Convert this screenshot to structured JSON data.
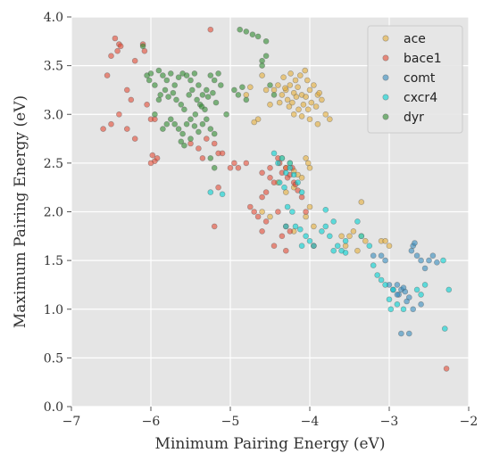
{
  "chart_data": {
    "type": "scatter",
    "title": "",
    "xlabel": "Minimum Pairing Energy (eV)",
    "ylabel": "Maximum Pairing Energy (eV)",
    "xlim": [
      -7,
      -2
    ],
    "ylim": [
      0,
      4
    ],
    "x_ticks": [
      -7,
      -6,
      -5,
      -4,
      -3,
      -2
    ],
    "x_tick_labels": [
      "−7",
      "−6",
      "−5",
      "−4",
      "−3",
      "−2"
    ],
    "y_ticks": [
      0.0,
      0.5,
      1.0,
      1.5,
      2.0,
      2.5,
      3.0,
      3.5,
      4.0
    ],
    "y_tick_labels": [
      "0.0",
      "0.5",
      "1.0",
      "1.5",
      "2.0",
      "2.5",
      "3.0",
      "3.5",
      "4.0"
    ],
    "grid": true,
    "legend_position": "top-right",
    "series": [
      {
        "name": "ace",
        "color": "#e5ae38",
        "points": [
          [
            -4.3,
            3.25
          ],
          [
            -4.25,
            3.3
          ],
          [
            -4.2,
            3.22
          ],
          [
            -4.15,
            3.28
          ],
          [
            -4.1,
            3.2
          ],
          [
            -4.05,
            3.18
          ],
          [
            -4.0,
            3.25
          ],
          [
            -3.95,
            3.3
          ],
          [
            -3.9,
            3.2
          ],
          [
            -3.85,
            3.15
          ],
          [
            -4.22,
            3.12
          ],
          [
            -4.18,
            3.35
          ],
          [
            -4.12,
            3.4
          ],
          [
            -4.08,
            3.1
          ],
          [
            -4.02,
            3.05
          ],
          [
            -3.98,
            3.12
          ],
          [
            -3.92,
            3.08
          ],
          [
            -4.28,
            3.15
          ],
          [
            -4.35,
            3.2
          ],
          [
            -4.4,
            3.3
          ],
          [
            -4.45,
            3.25
          ],
          [
            -4.5,
            3.1
          ],
          [
            -4.55,
            3.25
          ],
          [
            -4.6,
            3.4
          ],
          [
            -4.65,
            2.95
          ],
          [
            -4.7,
            2.92
          ],
          [
            -4.75,
            3.28
          ],
          [
            -4.8,
            3.2
          ],
          [
            -3.8,
            3.0
          ],
          [
            -3.75,
            2.95
          ],
          [
            -3.9,
            2.9
          ],
          [
            -4.0,
            2.95
          ],
          [
            -4.1,
            2.98
          ],
          [
            -4.2,
            3.0
          ],
          [
            -4.33,
            3.38
          ],
          [
            -4.06,
            3.45
          ],
          [
            -4.14,
            3.05
          ],
          [
            -4.26,
            3.08
          ],
          [
            -4.38,
            3.12
          ],
          [
            -3.88,
            3.22
          ],
          [
            -4.03,
            3.35
          ],
          [
            -4.17,
            3.18
          ],
          [
            -4.24,
            3.42
          ],
          [
            -4.31,
            3.27
          ],
          [
            -4.35,
            2.55
          ],
          [
            -4.3,
            2.45
          ],
          [
            -4.25,
            2.5
          ],
          [
            -4.2,
            2.42
          ],
          [
            -4.15,
            2.38
          ],
          [
            -4.05,
            2.55
          ],
          [
            -4.02,
            2.5
          ],
          [
            -4.0,
            2.45
          ],
          [
            -4.1,
            2.35
          ],
          [
            -4.4,
            2.3
          ],
          [
            -4.2,
            2.25
          ],
          [
            -4.0,
            2.05
          ],
          [
            -4.05,
            1.95
          ],
          [
            -4.2,
            1.8
          ],
          [
            -3.95,
            1.85
          ],
          [
            -4.3,
            2.2
          ],
          [
            -3.6,
            1.75
          ],
          [
            -3.55,
            1.65
          ],
          [
            -3.5,
            1.75
          ],
          [
            -3.45,
            1.8
          ],
          [
            -3.3,
            1.7
          ],
          [
            -3.4,
            1.6
          ],
          [
            -3.35,
            1.75
          ],
          [
            -3.1,
            1.7
          ],
          [
            -3.05,
            1.7
          ],
          [
            -3.0,
            1.65
          ],
          [
            -3.35,
            2.1
          ],
          [
            -4.6,
            2.0
          ],
          [
            -4.5,
            1.95
          ]
        ]
      },
      {
        "name": "bace1",
        "color": "#e24a33",
        "points": [
          [
            -6.45,
            3.78
          ],
          [
            -6.4,
            3.72
          ],
          [
            -6.42,
            3.65
          ],
          [
            -6.38,
            3.7
          ],
          [
            -6.5,
            3.6
          ],
          [
            -6.1,
            3.72
          ],
          [
            -6.08,
            3.65
          ],
          [
            -6.2,
            3.55
          ],
          [
            -6.55,
            3.4
          ],
          [
            -6.3,
            3.25
          ],
          [
            -6.25,
            3.15
          ],
          [
            -6.4,
            3.0
          ],
          [
            -6.5,
            2.9
          ],
          [
            -6.6,
            2.85
          ],
          [
            -6.3,
            2.85
          ],
          [
            -6.2,
            2.75
          ],
          [
            -6.0,
            2.95
          ],
          [
            -5.95,
            2.95
          ],
          [
            -6.05,
            3.1
          ],
          [
            -5.98,
            2.58
          ],
          [
            -5.95,
            2.52
          ],
          [
            -6.0,
            2.5
          ],
          [
            -5.92,
            2.55
          ],
          [
            -5.5,
            2.7
          ],
          [
            -5.4,
            2.65
          ],
          [
            -5.35,
            2.55
          ],
          [
            -5.3,
            2.75
          ],
          [
            -5.2,
            2.7
          ],
          [
            -5.15,
            2.6
          ],
          [
            -5.1,
            2.6
          ],
          [
            -5.0,
            2.45
          ],
          [
            -4.95,
            2.5
          ],
          [
            -4.9,
            2.45
          ],
          [
            -5.25,
            3.87
          ],
          [
            -5.15,
            2.25
          ],
          [
            -5.2,
            1.85
          ],
          [
            -4.8,
            2.5
          ],
          [
            -4.6,
            2.4
          ],
          [
            -4.5,
            2.45
          ],
          [
            -4.4,
            2.55
          ],
          [
            -4.38,
            2.5
          ],
          [
            -4.35,
            2.4
          ],
          [
            -4.3,
            2.45
          ],
          [
            -4.28,
            2.35
          ],
          [
            -4.25,
            2.38
          ],
          [
            -4.22,
            2.45
          ],
          [
            -4.2,
            2.3
          ],
          [
            -4.18,
            2.28
          ],
          [
            -4.15,
            2.22
          ],
          [
            -4.45,
            2.3
          ],
          [
            -4.5,
            2.35
          ],
          [
            -4.55,
            2.2
          ],
          [
            -4.6,
            2.15
          ],
          [
            -4.7,
            2.0
          ],
          [
            -4.75,
            2.05
          ],
          [
            -4.65,
            1.95
          ],
          [
            -4.55,
            1.9
          ],
          [
            -4.4,
            2.0
          ],
          [
            -4.3,
            1.85
          ],
          [
            -4.35,
            1.75
          ],
          [
            -4.45,
            1.65
          ],
          [
            -4.25,
            1.8
          ],
          [
            -4.6,
            1.8
          ],
          [
            -4.3,
            1.6
          ],
          [
            -4.1,
            2.15
          ],
          [
            -4.05,
            2.0
          ],
          [
            -3.95,
            1.65
          ],
          [
            -2.28,
            0.39
          ]
        ]
      },
      {
        "name": "comt",
        "color": "#348abd",
        "points": [
          [
            -2.9,
            1.25
          ],
          [
            -2.85,
            1.2
          ],
          [
            -2.88,
            1.15
          ],
          [
            -2.82,
            1.22
          ],
          [
            -2.8,
            1.18
          ],
          [
            -2.75,
            1.12
          ],
          [
            -2.95,
            1.2
          ],
          [
            -3.0,
            1.25
          ],
          [
            -2.7,
            1.65
          ],
          [
            -2.68,
            1.68
          ],
          [
            -2.65,
            1.55
          ],
          [
            -2.72,
            1.6
          ],
          [
            -2.6,
            1.5
          ],
          [
            -2.55,
            1.42
          ],
          [
            -2.5,
            1.5
          ],
          [
            -2.45,
            1.55
          ],
          [
            -2.4,
            1.48
          ],
          [
            -3.1,
            1.55
          ],
          [
            -3.05,
            1.5
          ],
          [
            -3.2,
            1.55
          ],
          [
            -2.9,
            1.15
          ],
          [
            -2.85,
            0.75
          ],
          [
            -2.75,
            0.75
          ],
          [
            -2.7,
            1.0
          ],
          [
            -2.6,
            1.05
          ],
          [
            -2.78,
            1.08
          ]
        ]
      },
      {
        "name": "cxcr4",
        "color": "#00d0d0",
        "points": [
          [
            -4.45,
            2.6
          ],
          [
            -4.4,
            2.5
          ],
          [
            -4.35,
            2.55
          ],
          [
            -4.3,
            2.4
          ],
          [
            -4.25,
            2.45
          ],
          [
            -4.2,
            2.38
          ],
          [
            -4.15,
            2.3
          ],
          [
            -4.1,
            2.2
          ],
          [
            -4.38,
            2.3
          ],
          [
            -4.32,
            2.25
          ],
          [
            -4.28,
            2.05
          ],
          [
            -4.22,
            2.0
          ],
          [
            -4.18,
            1.85
          ],
          [
            -4.12,
            1.82
          ],
          [
            -4.05,
            1.75
          ],
          [
            -4.0,
            1.7
          ],
          [
            -3.95,
            1.65
          ],
          [
            -4.1,
            1.65
          ],
          [
            -4.3,
            1.85
          ],
          [
            -3.85,
            1.8
          ],
          [
            -3.8,
            1.85
          ],
          [
            -3.75,
            1.75
          ],
          [
            -3.7,
            1.6
          ],
          [
            -3.65,
            1.65
          ],
          [
            -3.6,
            1.6
          ],
          [
            -3.55,
            1.58
          ],
          [
            -3.8,
            2.02
          ],
          [
            -3.7,
            1.9
          ],
          [
            -3.55,
            1.7
          ],
          [
            -3.4,
            1.9
          ],
          [
            -3.35,
            1.75
          ],
          [
            -3.25,
            1.65
          ],
          [
            -3.2,
            1.45
          ],
          [
            -3.15,
            1.35
          ],
          [
            -3.1,
            1.3
          ],
          [
            -3.05,
            1.25
          ],
          [
            -2.95,
            1.2
          ],
          [
            -3.0,
            1.1
          ],
          [
            -2.98,
            1.0
          ],
          [
            -2.9,
            1.05
          ],
          [
            -2.82,
            1.0
          ],
          [
            -2.65,
            1.2
          ],
          [
            -2.6,
            1.15
          ],
          [
            -2.55,
            1.25
          ],
          [
            -2.32,
            1.5
          ],
          [
            -2.3,
            0.8
          ],
          [
            -2.25,
            1.2
          ],
          [
            -5.1,
            2.18
          ],
          [
            -5.25,
            2.2
          ],
          [
            -4.25,
            2.5
          ]
        ]
      },
      {
        "name": "dyr",
        "color": "#2e8b2e",
        "points": [
          [
            -5.9,
            3.45
          ],
          [
            -5.85,
            3.4
          ],
          [
            -5.8,
            3.35
          ],
          [
            -5.75,
            3.42
          ],
          [
            -5.7,
            3.3
          ],
          [
            -5.65,
            3.38
          ],
          [
            -5.6,
            3.42
          ],
          [
            -5.55,
            3.4
          ],
          [
            -5.5,
            3.35
          ],
          [
            -5.45,
            3.42
          ],
          [
            -5.4,
            3.3
          ],
          [
            -5.35,
            3.2
          ],
          [
            -5.3,
            3.25
          ],
          [
            -5.25,
            3.4
          ],
          [
            -5.2,
            3.35
          ],
          [
            -5.15,
            3.42
          ],
          [
            -5.95,
            3.3
          ],
          [
            -5.88,
            3.2
          ],
          [
            -5.82,
            3.25
          ],
          [
            -5.78,
            3.18
          ],
          [
            -5.72,
            3.22
          ],
          [
            -5.68,
            3.15
          ],
          [
            -5.62,
            3.1
          ],
          [
            -5.58,
            3.05
          ],
          [
            -5.52,
            3.2
          ],
          [
            -5.48,
            3.25
          ],
          [
            -5.42,
            3.15
          ],
          [
            -5.38,
            3.1
          ],
          [
            -5.32,
            3.05
          ],
          [
            -5.28,
            3.18
          ],
          [
            -5.22,
            3.22
          ],
          [
            -5.18,
            3.12
          ],
          [
            -5.75,
            2.95
          ],
          [
            -5.7,
            2.9
          ],
          [
            -5.65,
            2.85
          ],
          [
            -5.6,
            2.8
          ],
          [
            -5.55,
            2.9
          ],
          [
            -5.5,
            2.95
          ],
          [
            -5.45,
            2.88
          ],
          [
            -5.4,
            2.82
          ],
          [
            -5.35,
            2.9
          ],
          [
            -5.3,
            2.95
          ],
          [
            -5.25,
            2.85
          ],
          [
            -5.2,
            2.8
          ],
          [
            -5.8,
            2.9
          ],
          [
            -5.85,
            2.85
          ],
          [
            -5.62,
            2.72
          ],
          [
            -5.58,
            2.68
          ],
          [
            -5.5,
            2.75
          ],
          [
            -5.44,
            3.0
          ],
          [
            -5.36,
            3.08
          ],
          [
            -5.9,
            3.15
          ],
          [
            -5.95,
            3.0
          ],
          [
            -6.05,
            3.4
          ],
          [
            -6.02,
            3.35
          ],
          [
            -6.0,
            3.42
          ],
          [
            -6.1,
            3.7
          ],
          [
            -5.2,
            2.45
          ],
          [
            -5.25,
            2.55
          ],
          [
            -4.88,
            3.87
          ],
          [
            -4.8,
            3.85
          ],
          [
            -4.72,
            3.82
          ],
          [
            -4.65,
            3.8
          ],
          [
            -4.55,
            3.75
          ],
          [
            -4.6,
            3.55
          ],
          [
            -4.6,
            3.5
          ],
          [
            -4.55,
            3.6
          ],
          [
            -4.95,
            3.25
          ],
          [
            -4.9,
            3.2
          ],
          [
            -4.85,
            3.28
          ],
          [
            -4.8,
            3.15
          ],
          [
            -4.5,
            3.3
          ],
          [
            -4.45,
            3.2
          ],
          [
            -5.12,
            3.3
          ],
          [
            -5.05,
            3.0
          ]
        ]
      }
    ]
  }
}
